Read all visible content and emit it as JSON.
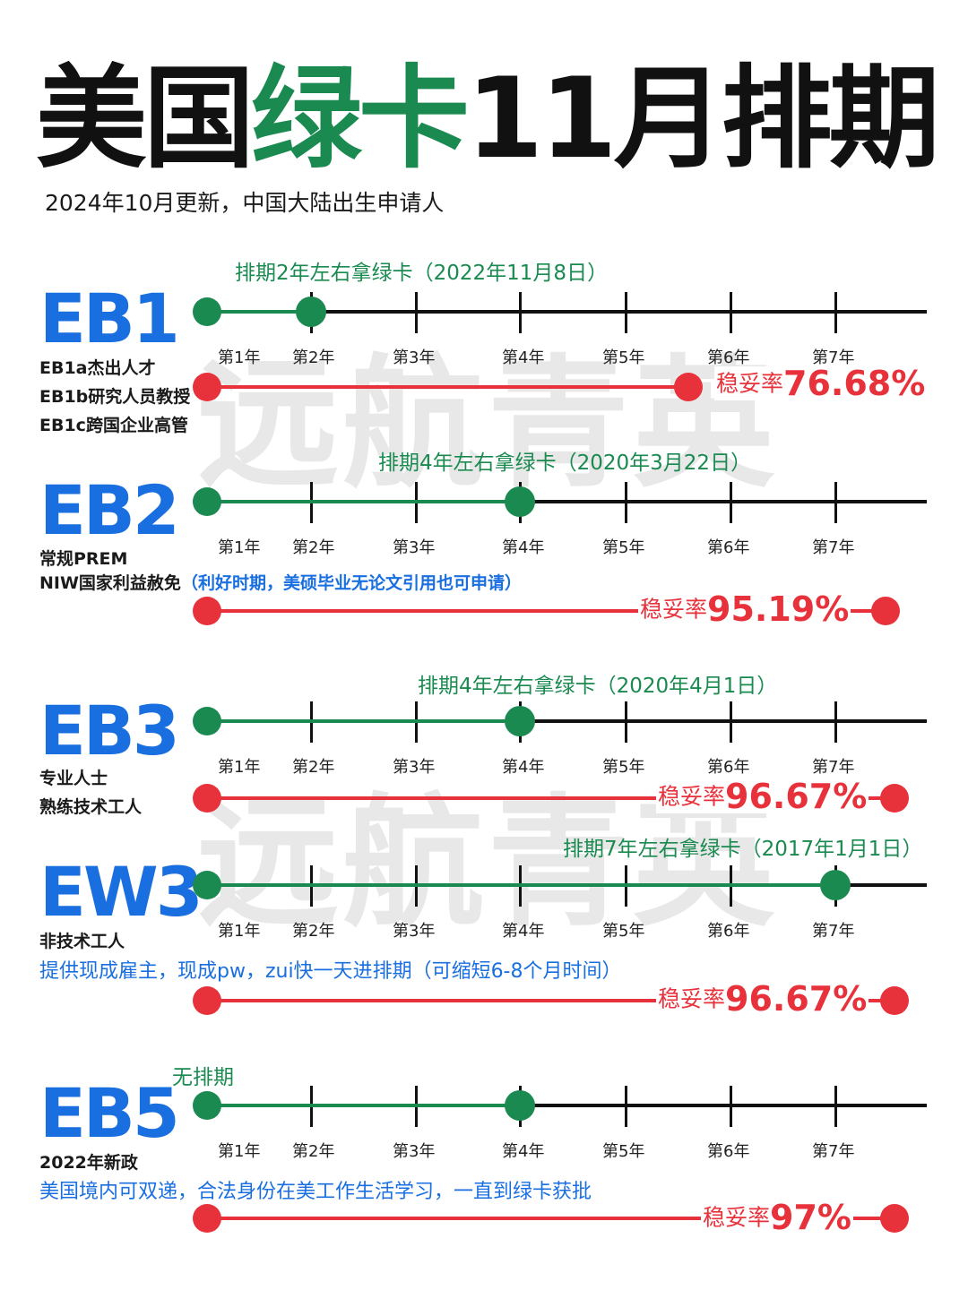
{
  "header": {
    "title_part1": "美国",
    "title_part2": "绿卡",
    "title_part3": "11月排期",
    "subtitle": "2024年10月更新，中国大陆出生申请人"
  },
  "watermark": "远航青英",
  "year_labels": [
    "第1年",
    "第2年",
    "第3年",
    "第4年",
    "第5年",
    "第6年",
    "第7年"
  ],
  "rate_label": "稳妥率",
  "categories": [
    {
      "label": "EB1",
      "wait_caption": "排期2年左右拿绿卡（2022年11月8日）",
      "wait_years": 2,
      "descriptions": [
        "EB1a杰出人才",
        "EB1b研究人员教授",
        "EB1c跨国企业高管"
      ],
      "rate": "76.68%"
    },
    {
      "label": "EB2",
      "wait_caption": "排期4年左右拿绿卡（2020年3月22日）",
      "wait_years": 4,
      "descriptions": [
        "常规PREM",
        "NIW国家利益赦免"
      ],
      "note": "（利好时期，美硕毕业无论文引用也可申请）",
      "rate": "95.19%"
    },
    {
      "label": "EB3",
      "wait_caption": "排期4年左右拿绿卡（2020年4月1日）",
      "wait_years": 4,
      "descriptions": [
        "专业人士",
        "熟练技术工人"
      ],
      "rate": "96.67%"
    },
    {
      "label": "EW3",
      "wait_caption": "排期7年左右拿绿卡（2017年1月1日）",
      "wait_years": 7,
      "descriptions": [
        "非技术工人"
      ],
      "note": "提供现成雇主，现成pw，zui快一天进排期（可缩短6-8个月时间）",
      "rate": "96.67%"
    },
    {
      "label": "EB5",
      "wait_caption": "无排期",
      "wait_years": 4,
      "descriptions": [
        "2022年新政"
      ],
      "note": "美国境内可双递，合法身份在美工作生活学习，一直到绿卡获批",
      "rate": "97%"
    }
  ]
}
